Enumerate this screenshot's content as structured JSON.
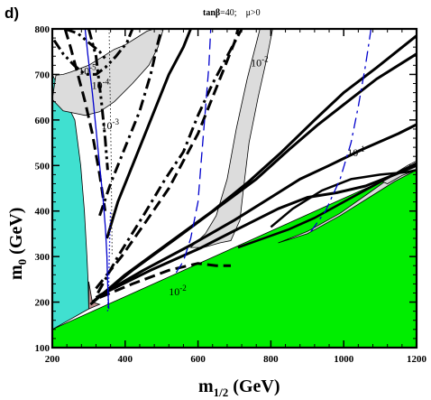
{
  "chart_data": {
    "type": "area",
    "panel_label": "d)",
    "parameters": {
      "tanb_symbol": "tanβ",
      "tanb_value": "=40;",
      "mu": "μ>0"
    },
    "xlabel": {
      "main": "m",
      "sub": "1/2",
      "unit": " (GeV)"
    },
    "ylabel": {
      "main": "m",
      "sub": "0",
      "unit": " (GeV)"
    },
    "xlim": [
      200,
      1200
    ],
    "ylim": [
      100,
      800
    ],
    "xticks": [
      200,
      400,
      600,
      800,
      1000,
      1200
    ],
    "yticks": [
      100,
      200,
      300,
      400,
      500,
      600,
      700,
      800
    ],
    "colors": {
      "excluded_green": "#00ee00",
      "cyan_region": "#40e0d0",
      "brown_region": "#bc8f8f",
      "gray_region": "#dcdcdc",
      "blue_line": "#0000cd"
    },
    "regions": [
      {
        "name": "green",
        "points": [
          [
            200,
            140
          ],
          [
            1200,
            500
          ],
          [
            1200,
            100
          ],
          [
            200,
            100
          ]
        ]
      },
      {
        "name": "cyan",
        "points": [
          [
            200,
            700
          ],
          [
            262,
            600
          ],
          [
            278,
            500
          ],
          [
            288,
            400
          ],
          [
            295,
            300
          ],
          [
            298,
            250
          ],
          [
            300,
            185
          ],
          [
            200,
            140
          ]
        ]
      },
      {
        "name": "brown",
        "points": [
          [
            300,
            185
          ],
          [
            300,
            245
          ],
          [
            310,
            200
          ],
          [
            330,
            195
          ]
        ]
      },
      {
        "name": "gray-top",
        "points": [
          [
            200,
            645
          ],
          [
            230,
            620
          ],
          [
            290,
            610
          ],
          [
            330,
            618
          ],
          [
            370,
            640
          ],
          [
            420,
            680
          ],
          [
            465,
            720
          ],
          [
            490,
            760
          ],
          [
            505,
            800
          ],
          [
            480,
            800
          ],
          [
            460,
            795
          ],
          [
            430,
            780
          ],
          [
            400,
            765
          ],
          [
            370,
            755
          ],
          [
            340,
            740
          ],
          [
            300,
            720
          ],
          [
            250,
            705
          ],
          [
            230,
            700
          ],
          [
            210,
            698
          ]
        ]
      },
      {
        "name": "gray-mid",
        "points": [
          [
            580,
            320
          ],
          [
            615,
            320
          ],
          [
            660,
            330
          ],
          [
            690,
            335
          ],
          [
            715,
            380
          ],
          [
            725,
            450
          ],
          [
            740,
            550
          ],
          [
            765,
            650
          ],
          [
            790,
            740
          ],
          [
            805,
            800
          ],
          [
            770,
            800
          ],
          [
            735,
            690
          ],
          [
            705,
            580
          ],
          [
            680,
            470
          ],
          [
            650,
            390
          ],
          [
            620,
            350
          ]
        ]
      },
      {
        "name": "gray-low",
        "points": [
          [
            820,
            330
          ],
          [
            900,
            355
          ],
          [
            990,
            395
          ],
          [
            1070,
            440
          ],
          [
            1140,
            480
          ],
          [
            1200,
            510
          ],
          [
            1200,
            490
          ],
          [
            1140,
            465
          ],
          [
            1070,
            430
          ],
          [
            990,
            390
          ],
          [
            900,
            350
          ]
        ]
      },
      {
        "name": "gray-corner",
        "points": [
          [
            1105,
            465
          ],
          [
            1175,
            500
          ],
          [
            1200,
            510
          ],
          [
            1200,
            490
          ],
          [
            1160,
            478
          ],
          [
            1120,
            460
          ]
        ]
      }
    ],
    "lines": [
      {
        "name": "solid-thick-1",
        "style": "solid",
        "width": 3,
        "points": [
          [
            305,
            195
          ],
          [
            400,
            260
          ],
          [
            520,
            330
          ],
          [
            640,
            400
          ],
          [
            740,
            465
          ],
          [
            830,
            530
          ],
          [
            920,
            600
          ],
          [
            1000,
            660
          ],
          [
            1090,
            715
          ],
          [
            1200,
            785
          ]
        ]
      },
      {
        "name": "solid-thick-2",
        "style": "solid",
        "width": 3,
        "points": [
          [
            310,
            200
          ],
          [
            420,
            270
          ],
          [
            540,
            340
          ],
          [
            650,
            405
          ],
          [
            760,
            470
          ],
          [
            850,
            535
          ],
          [
            930,
            590
          ],
          [
            1010,
            640
          ],
          [
            1090,
            690
          ],
          [
            1200,
            745
          ]
        ]
      },
      {
        "name": "solid-thick-3",
        "style": "solid",
        "width": 3,
        "points": [
          [
            320,
            210
          ],
          [
            450,
            270
          ],
          [
            580,
            325
          ],
          [
            700,
            380
          ],
          [
            800,
            430
          ],
          [
            880,
            470
          ],
          [
            960,
            500
          ],
          [
            1050,
            535
          ],
          [
            1150,
            570
          ],
          [
            1200,
            590
          ]
        ]
      },
      {
        "name": "solid-thick-4",
        "style": "solid",
        "width": 3,
        "points": [
          [
            330,
            215
          ],
          [
            470,
            270
          ],
          [
            610,
            320
          ],
          [
            720,
            365
          ],
          [
            820,
            405
          ],
          [
            900,
            430
          ],
          [
            980,
            440
          ],
          [
            1060,
            455
          ],
          [
            1140,
            480
          ],
          [
            1200,
            500
          ]
        ]
      },
      {
        "name": "solid-thick-5",
        "style": "solid",
        "width": 2.5,
        "points": [
          [
            710,
            320
          ],
          [
            780,
            340
          ],
          [
            850,
            360
          ],
          [
            920,
            385
          ],
          [
            1000,
            420
          ],
          [
            1080,
            455
          ],
          [
            1150,
            485
          ],
          [
            1200,
            505
          ]
        ]
      },
      {
        "name": "solid-thick-6",
        "style": "solid",
        "width": 2.5,
        "points": [
          [
            800,
            365
          ],
          [
            860,
            405
          ],
          [
            940,
            445
          ],
          [
            1020,
            470
          ],
          [
            1100,
            480
          ],
          [
            1170,
            485
          ],
          [
            1200,
            490
          ]
        ]
      },
      {
        "name": "solid-thick-7",
        "style": "solid",
        "width": 3,
        "points": [
          [
            350,
            340
          ],
          [
            380,
            420
          ],
          [
            420,
            500
          ],
          [
            470,
            600
          ],
          [
            520,
            700
          ],
          [
            560,
            760
          ],
          [
            580,
            800
          ]
        ]
      },
      {
        "name": "dash-1",
        "style": "dash",
        "width": 3,
        "points": [
          [
            320,
            230
          ],
          [
            390,
            300
          ],
          [
            460,
            380
          ],
          [
            520,
            450
          ],
          [
            560,
            510
          ],
          [
            600,
            570
          ],
          [
            640,
            650
          ],
          [
            670,
            710
          ],
          [
            700,
            770
          ],
          [
            710,
            800
          ]
        ]
      },
      {
        "name": "dash-2",
        "style": "dash",
        "width": 3,
        "points": [
          [
            330,
            210
          ],
          [
            420,
            240
          ],
          [
            520,
            270
          ],
          [
            600,
            285
          ],
          [
            650,
            280
          ],
          [
            690,
            280
          ]
        ]
      },
      {
        "name": "dash-3",
        "style": "dash",
        "width": 3,
        "points": [
          [
            235,
            800
          ],
          [
            250,
            760
          ],
          [
            270,
            700
          ],
          [
            290,
            640
          ],
          [
            310,
            570
          ],
          [
            330,
            480
          ],
          [
            345,
            400
          ]
        ]
      },
      {
        "name": "dashdot-1",
        "style": "dashdot",
        "width": 3,
        "points": [
          [
            325,
            220
          ],
          [
            380,
            300
          ],
          [
            450,
            390
          ],
          [
            510,
            470
          ],
          [
            560,
            530
          ],
          [
            600,
            610
          ],
          [
            640,
            680
          ],
          [
            680,
            740
          ],
          [
            720,
            800
          ]
        ]
      },
      {
        "name": "dashdot-2",
        "style": "dashdot",
        "width": 3,
        "points": [
          [
            330,
            390
          ],
          [
            360,
            460
          ],
          [
            400,
            540
          ],
          [
            440,
            620
          ],
          [
            470,
            700
          ],
          [
            490,
            770
          ],
          [
            500,
            800
          ]
        ]
      },
      {
        "name": "dashdotdot-1",
        "style": "dashdotdot",
        "width": 3,
        "points": [
          [
            205,
            775
          ],
          [
            230,
            745
          ],
          [
            260,
            720
          ],
          [
            290,
            700
          ],
          [
            320,
            700
          ],
          [
            345,
            715
          ],
          [
            375,
            740
          ],
          [
            405,
            770
          ],
          [
            420,
            800
          ]
        ]
      },
      {
        "name": "dashdotdot-2",
        "style": "dashdotdot",
        "width": 3,
        "points": [
          [
            235,
            800
          ],
          [
            270,
            790
          ],
          [
            300,
            770
          ],
          [
            330,
            750
          ],
          [
            350,
            730
          ]
        ]
      },
      {
        "name": "dashdotdot-3",
        "style": "dashdotdot",
        "width": 3,
        "points": [
          [
            300,
            800
          ],
          [
            320,
            740
          ],
          [
            335,
            640
          ],
          [
            345,
            560
          ],
          [
            352,
            490
          ]
        ]
      },
      {
        "name": "blue-solid",
        "style": "solid",
        "width": 1.3,
        "color": "#0000cd",
        "points": [
          [
            290,
            800
          ],
          [
            298,
            740
          ],
          [
            310,
            660
          ],
          [
            320,
            580
          ],
          [
            330,
            500
          ],
          [
            340,
            420
          ],
          [
            346,
            360
          ],
          [
            350,
            300
          ],
          [
            352,
            240
          ],
          [
            355,
            185
          ]
        ]
      },
      {
        "name": "blue-dotted",
        "style": "dotted",
        "width": 1.3,
        "color": "#0000cd",
        "points": [
          [
            352,
            180
          ],
          [
            355,
            240
          ],
          [
            357,
            320
          ],
          [
            360,
            400
          ]
        ]
      },
      {
        "name": "black-dotted",
        "style": "dotted",
        "width": 0.8,
        "points": [
          [
            356,
            800
          ],
          [
            358,
            700
          ],
          [
            360,
            600
          ],
          [
            362,
            500
          ],
          [
            363,
            400
          ],
          [
            364,
            300
          ]
        ]
      },
      {
        "name": "blue-dashed",
        "style": "dash",
        "width": 1.3,
        "color": "#0000cd",
        "points": [
          [
            540,
            265
          ],
          [
            560,
            290
          ],
          [
            580,
            340
          ],
          [
            600,
            420
          ],
          [
            610,
            520
          ],
          [
            620,
            620
          ],
          [
            630,
            720
          ],
          [
            635,
            800
          ]
        ]
      },
      {
        "name": "blue-dashdot",
        "style": "dashdot",
        "width": 1.3,
        "color": "#0000cd",
        "points": [
          [
            910,
            355
          ],
          [
            950,
            400
          ],
          [
            990,
            470
          ],
          [
            1020,
            550
          ],
          [
            1040,
            630
          ],
          [
            1060,
            720
          ],
          [
            1075,
            800
          ]
        ]
      }
    ],
    "annotations": [
      {
        "text": "10",
        "sup": "-5",
        "x": 272,
        "y": 700
      },
      {
        "text": "10",
        "sup": "-4",
        "x": 308,
        "y": 668
      },
      {
        "text": "10",
        "sup": "-3",
        "x": 335,
        "y": 580
      },
      {
        "text": "10",
        "sup": "-2",
        "x": 745,
        "y": 718
      },
      {
        "text": "10",
        "sup": "-1",
        "x": 1010,
        "y": 520
      },
      {
        "text": "10",
        "sup": "-2",
        "x": 520,
        "y": 215
      }
    ]
  }
}
